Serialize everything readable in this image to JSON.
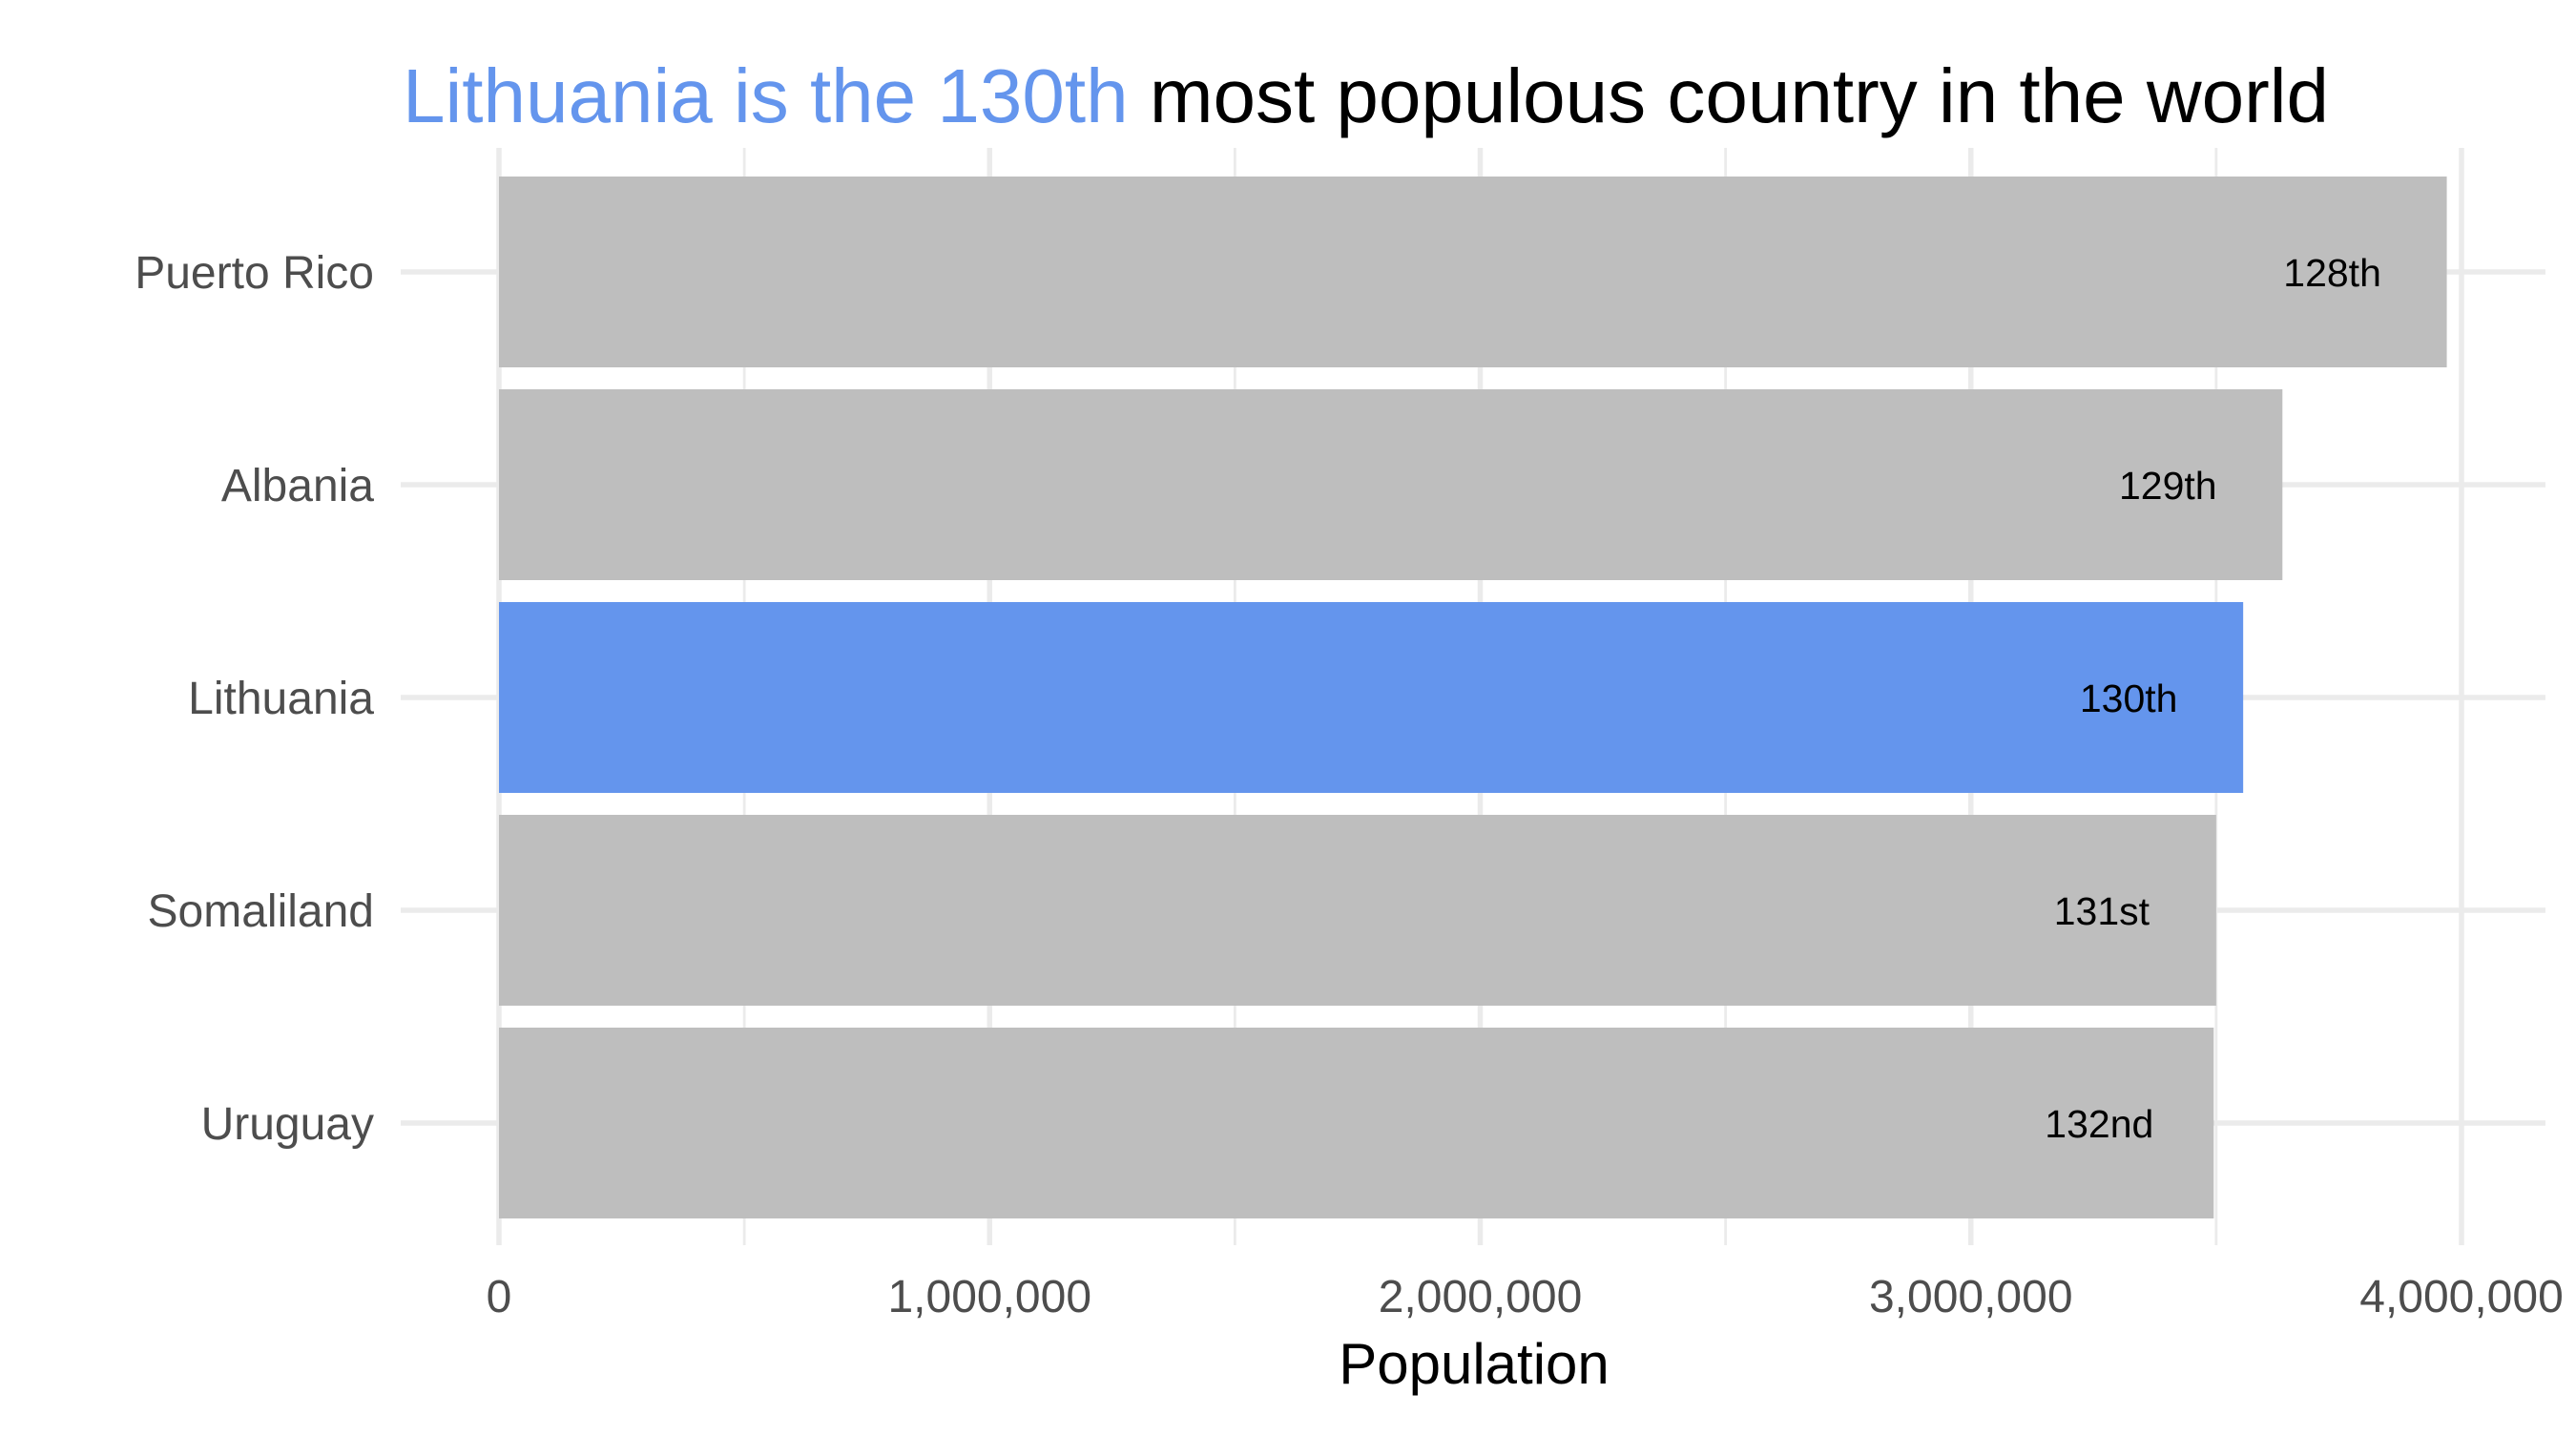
{
  "title": {
    "highlight": "Lithuania is the 130th",
    "rest": " most populous country in the world"
  },
  "colors": {
    "highlight": "#6495ED",
    "default_bar": "#BEBEBE",
    "grid": "#EBEBEB",
    "tick_text": "#4D4D4D"
  },
  "chart_data": {
    "type": "bar",
    "orientation": "horizontal",
    "xlabel": "Population",
    "ylabel": "",
    "xlim": [
      0,
      4000000
    ],
    "x_ticks": [
      0,
      1000000,
      2000000,
      3000000,
      4000000
    ],
    "x_tick_labels": [
      "0",
      "1,000,000",
      "2,000,000",
      "3,000,000",
      "4,000,000"
    ],
    "grid": true,
    "categories": [
      "Puerto Rico",
      "Albania",
      "Lithuania",
      "Somaliland",
      "Uruguay"
    ],
    "values": [
      3970000,
      3635000,
      3555000,
      3500000,
      3495000
    ],
    "rank_labels": [
      "128th",
      "129th",
      "130th",
      "131st",
      "132nd"
    ],
    "highlight_category": "Lithuania"
  }
}
